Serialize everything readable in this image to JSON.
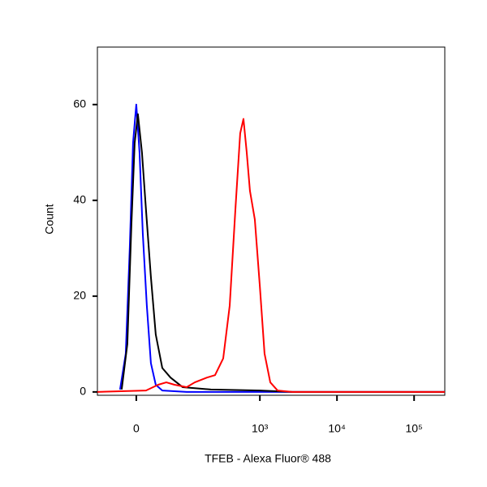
{
  "chart_data": {
    "type": "line",
    "x_label": "TFEB - Alexa Fluor® 488",
    "y_label": "Count",
    "x_scale": {
      "type": "arcsinh",
      "cofactor": 50
    },
    "xlim": [
      -72,
      250000
    ],
    "xticks": [
      0,
      {
        "value": 1000,
        "label": "10³"
      },
      {
        "value": 10000,
        "label": "10⁴"
      },
      {
        "value": 100000,
        "label": "10⁵"
      }
    ],
    "ylim": [
      -0.7,
      72
    ],
    "yticks": [
      0,
      20,
      40,
      60
    ],
    "series": [
      {
        "color": "#0000ff",
        "x": [
          -25.2,
          -16.0,
          -9.8,
          -4.85,
          0,
          4.85,
          9.8,
          16.0,
          22.5,
          30.7,
          42.8,
          107,
          250000
        ],
        "values": [
          0.5,
          8,
          30,
          52,
          60,
          50,
          33,
          18,
          6,
          1.5,
          0.3,
          0,
          0
        ]
      },
      {
        "color": "#000000",
        "x": [
          -22.5,
          -13.5,
          -7.3,
          -2.4,
          2.4,
          8.5,
          14.7,
          22.5,
          30.7,
          42.8,
          60.5,
          93.3,
          229,
          1000,
          2624,
          250000
        ],
        "values": [
          0.5,
          10,
          35,
          52,
          58,
          50,
          38,
          24,
          12,
          5,
          3,
          1,
          0.5,
          0.3,
          0,
          0
        ]
      },
      {
        "color": "#ff0000",
        "x": [
          -72,
          14.7,
          35.1,
          51.1,
          70.2,
          107,
          139,
          203,
          260,
          333,
          405,
          480,
          555,
          612,
          675,
          743,
          860,
          1000,
          1150,
          1365,
          1695,
          2624,
          250000
        ],
        "values": [
          0,
          0.3,
          1.5,
          2,
          1.5,
          1,
          2,
          3,
          3.5,
          7,
          18,
          38,
          54,
          57,
          50,
          42,
          36,
          22,
          8,
          2,
          0.3,
          0,
          0
        ]
      }
    ]
  }
}
